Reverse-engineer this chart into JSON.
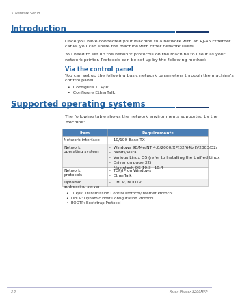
{
  "page_label": "3  Network Setup",
  "page_footer_left": "3-2",
  "page_footer_right": "Xerox Phaser 3200MFP",
  "bg_color": "#ffffff",
  "content_bg": "#ffffff",
  "blue_heading_color": "#2060a0",
  "dark_blue_block": "#1a3a6e",
  "header_rule_color": "#aaaacc",
  "section1_title": "Introduction",
  "section1_body1": "Once you have connected your machine to a network with an RJ-45 Ethernet\ncable, you can share the machine with other network users.",
  "section1_body2": "You need to set up the network protocols on the machine to use it as your\nnetwork printer. Protocols can be set up by the following method:",
  "subsection1_title": "Via the control panel",
  "subsection1_body": "You can set up the following basic network parameters through the machine's\ncontrol panel:",
  "subsection1_bullets": [
    "Configure TCP/IP",
    "Configure EtherTalk"
  ],
  "section2_title": "Supported operating systems",
  "section2_intro": "The following table shows the network environments supported by the\nmachine:",
  "table_header": [
    "Item",
    "Requirements"
  ],
  "table_header_bg": "#4a7eb5",
  "table_header_color": "#ffffff",
  "table_rows": [
    [
      "Network interface",
      "10/100 Base-TX"
    ],
    [
      "Network\noperating system",
      "Windows 98/Me/NT 4.0/2000/XP(32/64bit)/2003(32/\n64bit)/Vista\nVarious Linux OS (refer to Installing the Unified Linux\nDriver on page 32)\nMacintosh OS 10.3~10.4"
    ],
    [
      "Network\nprotocols",
      "TCP/IP on Windows\nEtherTalk"
    ],
    [
      "Dynamic\naddressing server",
      "DHCP, BOOTP"
    ]
  ],
  "table_row_bg1": "#ffffff",
  "table_row_bg2": "#f0f0f0",
  "table_border_color": "#aaaaaa",
  "footer_bullets": [
    "TCP/IP: Transmission Control Protocol/Internet Protocol",
    "DHCP: Dynamic Host Configuration Protocol",
    "BOOTP: Bootstrap Protocol"
  ],
  "body_fontsize": 4.5,
  "heading1_fontsize": 8.5,
  "heading2_fontsize": 6.0,
  "table_fontsize": 4.2,
  "footer_fontsize": 4.0,
  "page_label_fontsize": 3.5,
  "footer_label_fontsize": 3.5
}
